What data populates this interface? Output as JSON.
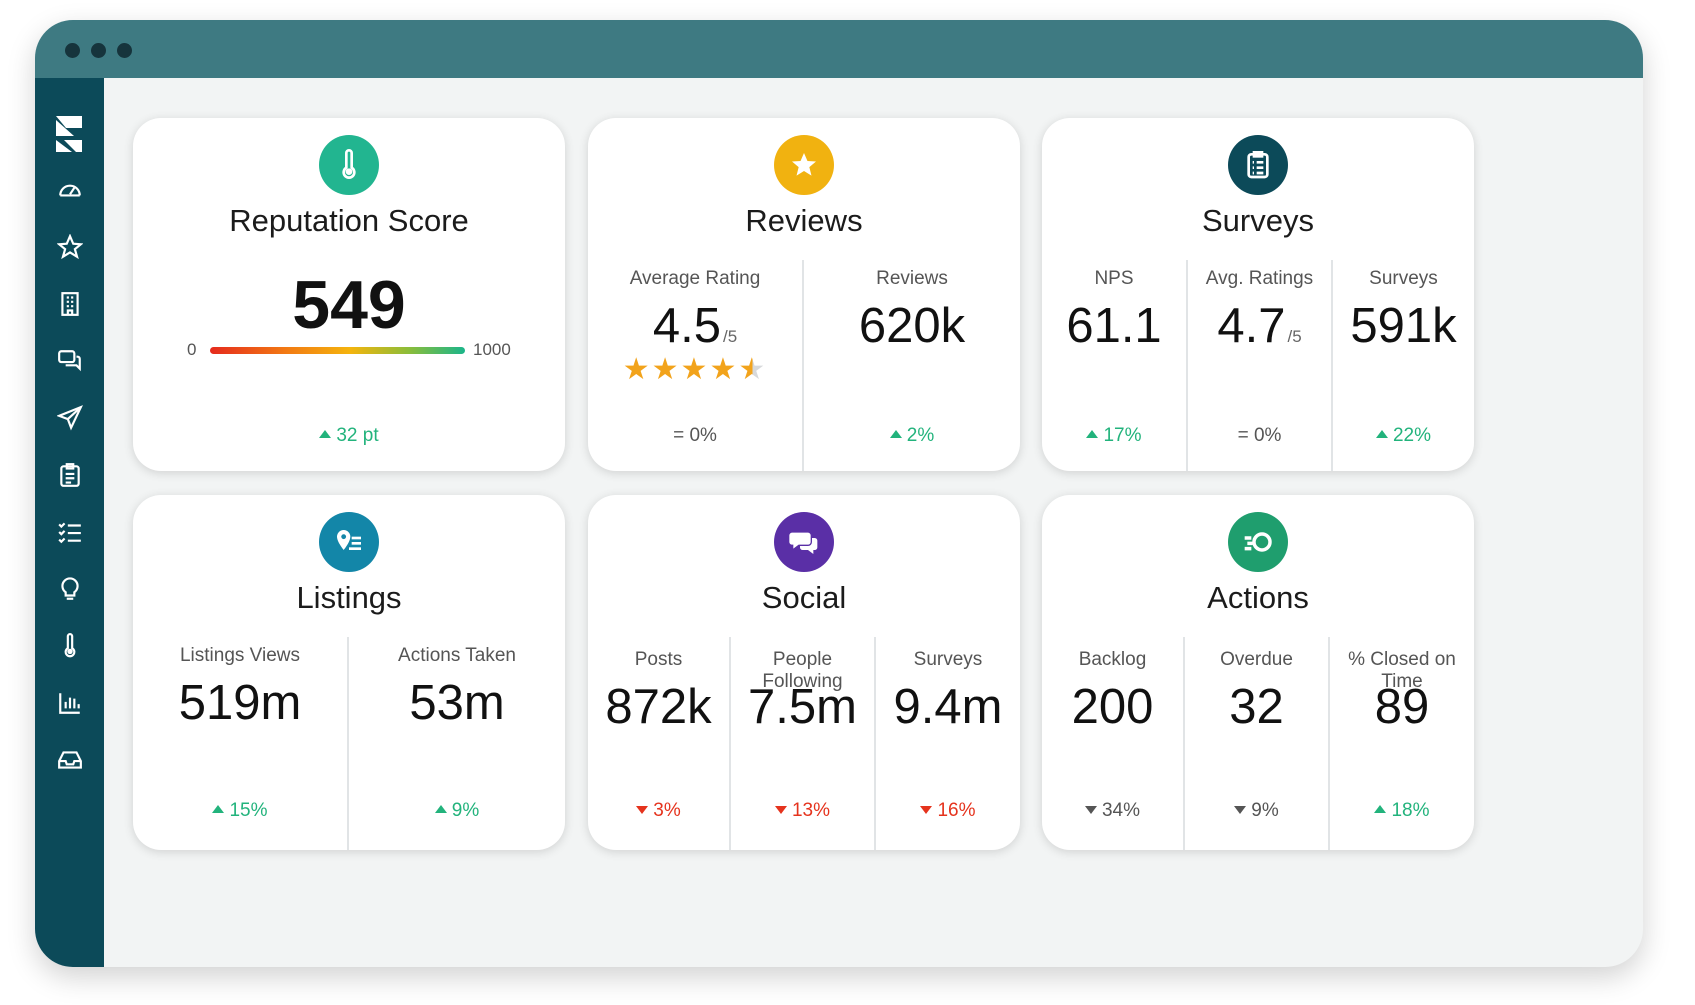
{
  "colors": {
    "titlebar": "#3e7a82",
    "sidebar": "#0c4a59",
    "positive": "#22b37c",
    "negative": "#e5331d",
    "reputation_icon": "#22b590",
    "reviews_icon": "#f1b210",
    "surveys_icon": "#0c4a59",
    "listings_icon": "#1386a8",
    "social_icon": "#5a2fa6",
    "actions_icon": "#1f9e6e"
  },
  "sidebar": {
    "items": [
      {
        "icon": "dashboard-icon"
      },
      {
        "icon": "star-icon"
      },
      {
        "icon": "building-icon"
      },
      {
        "icon": "chat-icon"
      },
      {
        "icon": "paper-plane-icon"
      },
      {
        "icon": "clipboard-icon"
      },
      {
        "icon": "checklist-icon"
      },
      {
        "icon": "lightbulb-icon"
      },
      {
        "icon": "thermometer-icon"
      },
      {
        "icon": "bar-chart-icon"
      },
      {
        "icon": "inbox-icon"
      }
    ]
  },
  "reputation": {
    "title": "Reputation Score",
    "score": "549",
    "score_fraction": 0.549,
    "min": "0",
    "max": "1000",
    "delta": "32 pt",
    "icon": "thermometer-icon"
  },
  "reviews": {
    "title": "Reviews",
    "icon": "star-icon",
    "metrics": [
      {
        "label": "Average Rating",
        "value": "4.5",
        "unit": "/5",
        "stars": 4.5,
        "delta": "0%"
      },
      {
        "label": "Reviews",
        "value": "620k",
        "delta": "2%"
      }
    ]
  },
  "surveys": {
    "title": "Surveys",
    "icon": "clipboard-icon",
    "metrics": [
      {
        "label": "NPS",
        "value": "61.1",
        "delta": "17%"
      },
      {
        "label": "Avg. Ratings",
        "value": "4.7",
        "unit": "/5",
        "delta": "0%"
      },
      {
        "label": "Surveys",
        "value": "591k",
        "delta": "22%"
      }
    ]
  },
  "listings": {
    "title": "Listings",
    "icon": "location-list-icon",
    "metrics": [
      {
        "label": "Listings Views",
        "value": "519m",
        "delta": "15%"
      },
      {
        "label": "Actions Taken",
        "value": "53m",
        "delta": "9%"
      }
    ]
  },
  "social": {
    "title": "Social",
    "icon": "chat-bubbles-icon",
    "metrics": [
      {
        "label": "Posts",
        "value": "872k",
        "delta": "3%"
      },
      {
        "label": "People Following",
        "value": "7.5m",
        "delta": "13%"
      },
      {
        "label": "Surveys",
        "value": "9.4m",
        "delta": "16%"
      }
    ]
  },
  "actions": {
    "title": "Actions",
    "icon": "speed-circle-icon",
    "metrics": [
      {
        "label": "Backlog",
        "value": "200",
        "delta": "34%"
      },
      {
        "label": "Overdue",
        "value": "32",
        "delta": "9%"
      },
      {
        "label": "% Closed on Time",
        "value": "89",
        "delta": "18%"
      }
    ]
  }
}
